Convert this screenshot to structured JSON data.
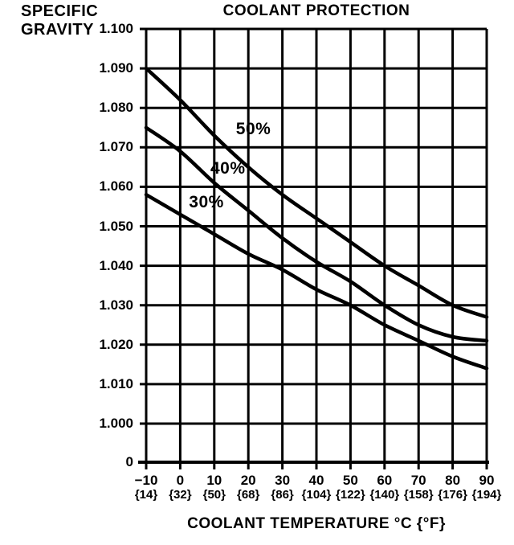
{
  "page": {
    "background": "#ffffff",
    "ink_color": "#000000"
  },
  "chart_data": {
    "type": "line",
    "title": "COOLANT PROTECTION",
    "y_axis_title_lines": [
      "SPECIFIC",
      "GRAVITY"
    ],
    "x_axis_title": "COOLANT TEMPERATURE °C {°F}",
    "xlabel": "COOLANT TEMPERATURE °C {°F}",
    "ylabel": "SPECIFIC GRAVITY",
    "xlim": [
      -10,
      90
    ],
    "ylim": [
      1.0,
      1.1
    ],
    "grid": true,
    "legend_position": "inline-labels",
    "x": [
      -10,
      0,
      10,
      20,
      30,
      40,
      50,
      60,
      70,
      80,
      90
    ],
    "x_tick_labels_c": [
      "−10",
      "0",
      "10",
      "20",
      "30",
      "40",
      "50",
      "60",
      "70",
      "80",
      "90"
    ],
    "x_tick_labels_f": [
      "{14}",
      "{32}",
      "{50}",
      "{68}",
      "{86}",
      "{104}",
      "{122}",
      "{140}",
      "{158}",
      "{176}",
      "{194}"
    ],
    "y_ticks": [
      1.1,
      1.09,
      1.08,
      1.07,
      1.06,
      1.05,
      1.04,
      1.03,
      1.02,
      1.01,
      1.0
    ],
    "y_tick_labels": [
      "1.100",
      "1.090",
      "1.080",
      "1.070",
      "1.060",
      "1.050",
      "1.040",
      "1.030",
      "1.020",
      "1.010",
      "1.000"
    ],
    "y_baseline_label": "0",
    "series": [
      {
        "name": "50%",
        "values": [
          1.09,
          1.082,
          1.073,
          1.065,
          1.058,
          1.052,
          1.046,
          1.04,
          1.035,
          1.03,
          1.027
        ]
      },
      {
        "name": "40%",
        "values": [
          1.075,
          1.069,
          1.061,
          1.054,
          1.047,
          1.041,
          1.036,
          1.03,
          1.025,
          1.022,
          1.021
        ]
      },
      {
        "name": "30%",
        "values": [
          1.058,
          1.053,
          1.048,
          1.043,
          1.039,
          1.034,
          1.03,
          1.025,
          1.021,
          1.017,
          1.014
        ]
      }
    ],
    "annotations": [
      {
        "text": "50%",
        "x": 21.5,
        "y": 1.0745
      },
      {
        "text": "40%",
        "x": 14.0,
        "y": 1.0645
      },
      {
        "text": "30%",
        "x": 7.7,
        "y": 1.056
      }
    ],
    "line_color": "#000000",
    "grid_color": "#000000"
  }
}
